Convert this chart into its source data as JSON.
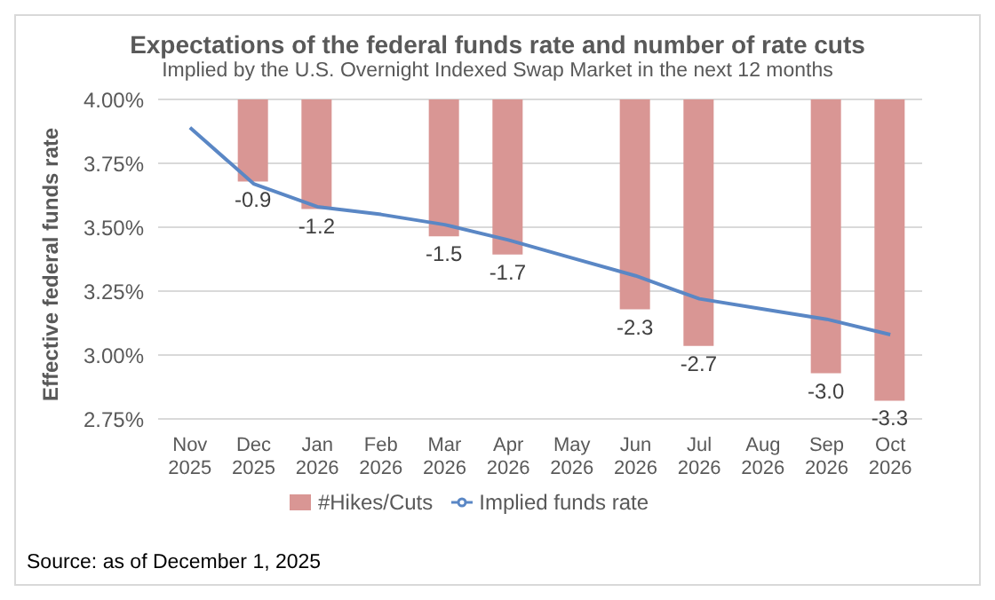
{
  "chart_data": {
    "type": "bar",
    "title": "Expectations of the federal funds rate and number of rate cuts",
    "subtitle": "Implied by the U.S. Overnight Indexed Swap Market in the next 12 months",
    "ylabel": "Effective federal funds rate",
    "categories": [
      "Nov 2025",
      "Dec 2025",
      "Jan 2026",
      "Feb 2026",
      "Mar 2026",
      "Apr 2026",
      "May 2026",
      "Jun 2026",
      "Jul 2026",
      "Aug 2026",
      "Sep 2026",
      "Oct 2026"
    ],
    "series": [
      {
        "name": "#Hikes/Cuts",
        "axis": "y2",
        "color": "#d99694",
        "values": [
          null,
          -0.9,
          -1.2,
          null,
          -1.5,
          -1.7,
          null,
          -2.3,
          -2.7,
          null,
          -3.0,
          -3.3
        ],
        "value_labels": [
          null,
          "-0.9",
          "-1.2",
          null,
          "-1.5",
          "-1.7",
          null,
          "-2.3",
          "-2.7",
          null,
          "-3.0",
          "-3.3"
        ]
      },
      {
        "name": "Implied funds rate",
        "type": "line",
        "color": "#5a87c5",
        "values": [
          3.89,
          3.67,
          3.58,
          3.55,
          3.51,
          3.45,
          3.38,
          3.31,
          3.22,
          3.18,
          3.14,
          3.08
        ]
      }
    ],
    "ylim": [
      2.75,
      4
    ],
    "yticks": [
      {
        "value": 2.75,
        "label": "2.75%"
      },
      {
        "value": 3,
        "label": "3.00%"
      },
      {
        "value": 3.25,
        "label": "3.25%"
      },
      {
        "value": 3.5,
        "label": "3.50%"
      },
      {
        "value": 3.75,
        "label": "3.75%"
      },
      {
        "value": 4,
        "label": "4.00%"
      }
    ],
    "y2lim": [
      -3.5,
      0
    ],
    "tick_labels": "xy",
    "grid": "y",
    "legend": "bottom",
    "marker": "none",
    "line_style": "solid",
    "annotations": [
      "Source: as of December 1, 2025"
    ]
  }
}
